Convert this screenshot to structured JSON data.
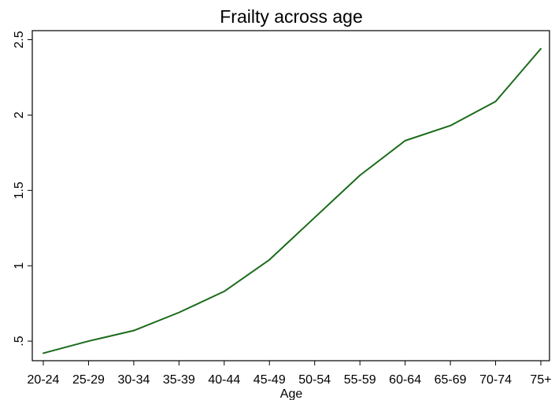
{
  "chart_data": {
    "type": "line",
    "title": "Frailty across age",
    "xlabel": "Age",
    "ylabel": "",
    "categories": [
      "20-24",
      "25-29",
      "30-34",
      "35-39",
      "40-44",
      "45-49",
      "50-54",
      "55-59",
      "60-64",
      "65-69",
      "70-74",
      "75+"
    ],
    "series": [
      {
        "values": [
          0.42,
          0.5,
          0.57,
          0.69,
          0.83,
          1.04,
          1.32,
          1.6,
          1.83,
          1.93,
          2.09,
          2.44
        ],
        "color": "#1a6b1a"
      }
    ],
    "yticks": [
      0.5,
      1,
      1.5,
      2,
      2.5
    ],
    "ytick_labels": [
      ".5",
      "1",
      "1.5",
      "2",
      "2.5"
    ],
    "ylim": [
      0.37,
      2.56
    ],
    "grid": false,
    "legend": "none"
  }
}
